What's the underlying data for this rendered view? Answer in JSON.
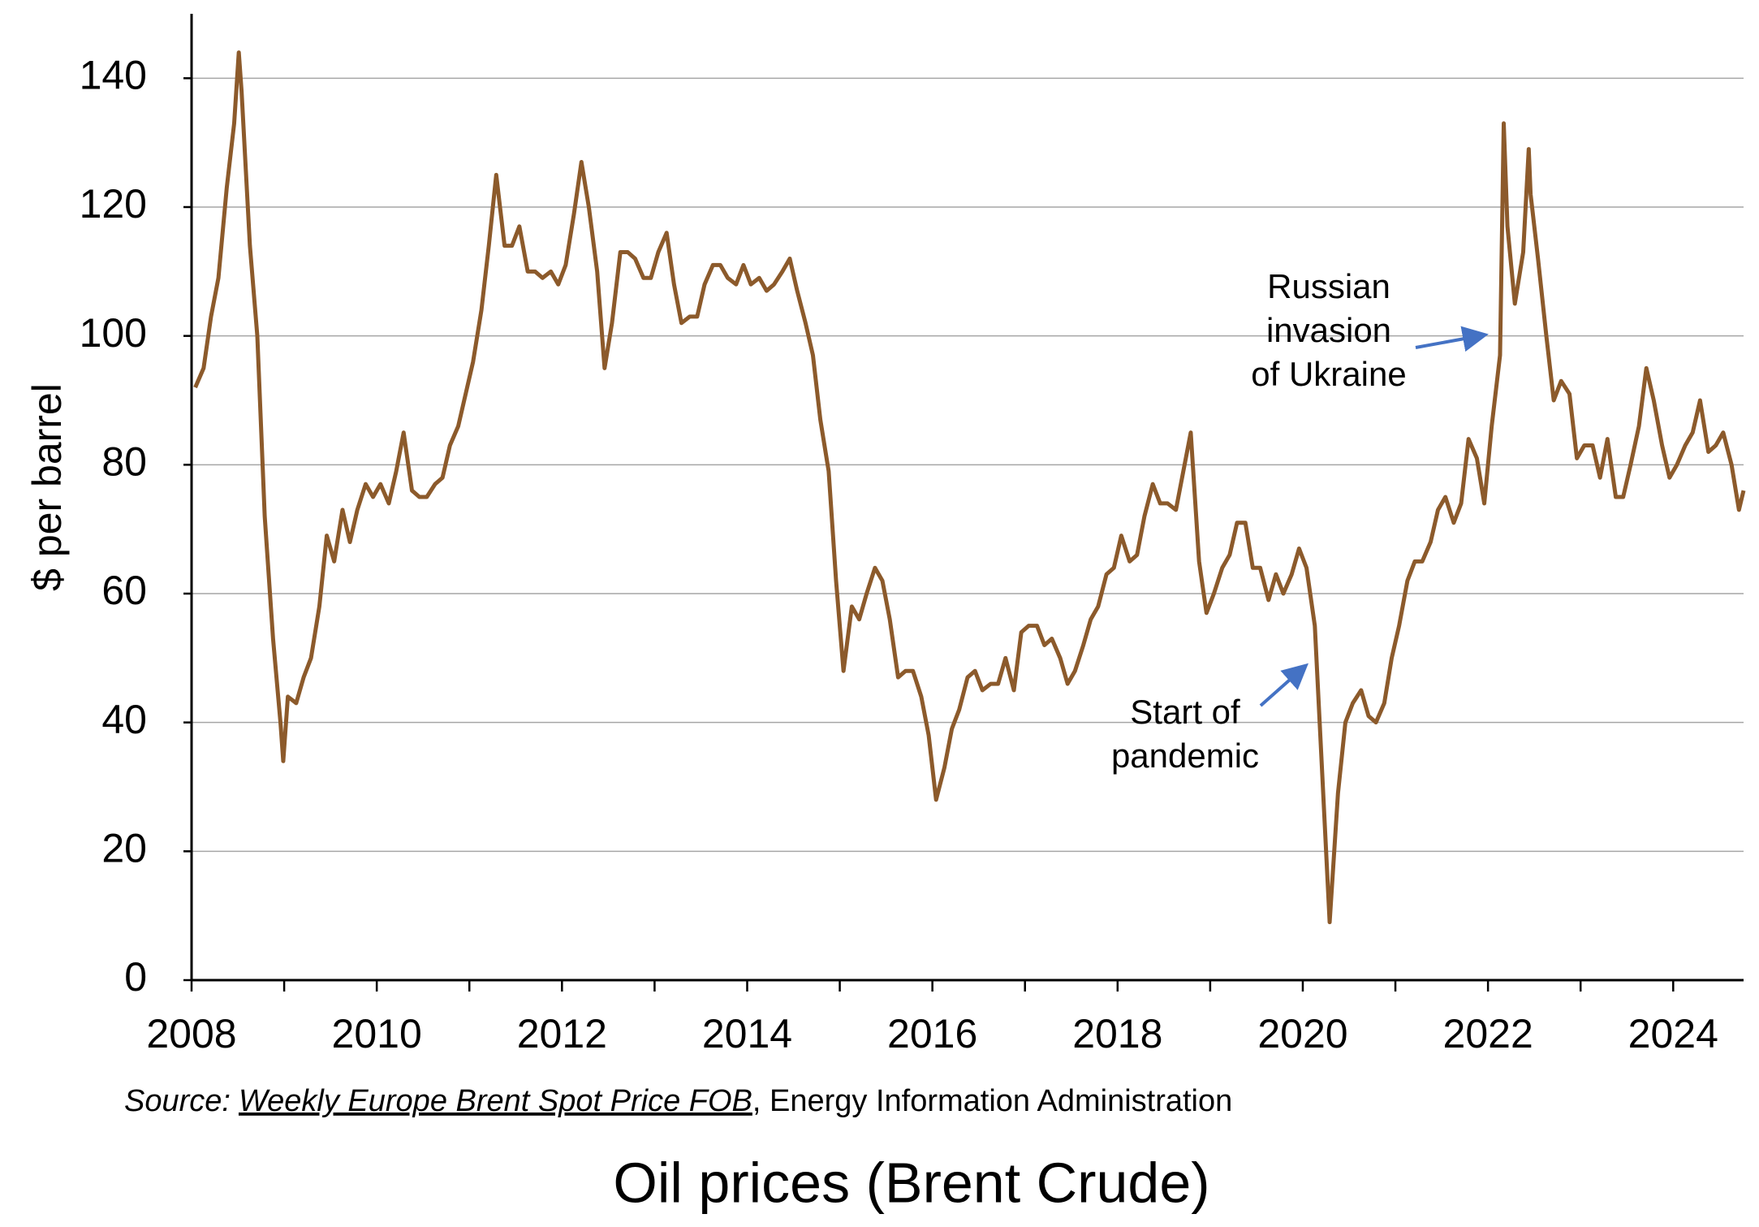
{
  "chart_data": {
    "type": "line",
    "title": "Oil prices (Brent Crude)",
    "y_label": "$ per barrel",
    "source": {
      "prefix": "Source:",
      "link": "Weekly Europe Brent Spot Price FOB",
      "suffix": ", Energy Information Administration"
    },
    "annotations": [
      {
        "lines": [
          "Russian",
          "invasion",
          "of Ukraine"
        ]
      },
      {
        "lines": [
          "Start of",
          "pandemic"
        ]
      }
    ],
    "annotation_color": "#4472c4",
    "xlim": [
      2008,
      2024.76
    ],
    "xticks": [
      2008,
      2010,
      2012,
      2014,
      2016,
      2018,
      2020,
      2022,
      2024
    ],
    "xminorticks": [
      2009,
      2011,
      2013,
      2015,
      2017,
      2019,
      2021,
      2023
    ],
    "ylim": [
      0,
      150
    ],
    "yticks": [
      0,
      20,
      40,
      60,
      80,
      100,
      120,
      140
    ],
    "grid": true,
    "x": [
      2008.04,
      2008.13,
      2008.21,
      2008.29,
      2008.38,
      2008.46,
      2008.51,
      2008.54,
      2008.63,
      2008.71,
      2008.79,
      2008.88,
      2008.96,
      2008.99,
      2009.04,
      2009.13,
      2009.21,
      2009.29,
      2009.38,
      2009.46,
      2009.54,
      2009.63,
      2009.71,
      2009.79,
      2009.88,
      2009.96,
      2010.04,
      2010.13,
      2010.21,
      2010.29,
      2010.38,
      2010.46,
      2010.54,
      2010.63,
      2010.71,
      2010.79,
      2010.88,
      2010.96,
      2011.04,
      2011.13,
      2011.21,
      2011.29,
      2011.38,
      2011.46,
      2011.54,
      2011.63,
      2011.71,
      2011.79,
      2011.88,
      2011.96,
      2012.04,
      2012.13,
      2012.21,
      2012.29,
      2012.38,
      2012.46,
      2012.54,
      2012.63,
      2012.71,
      2012.79,
      2012.88,
      2012.96,
      2013.04,
      2013.13,
      2013.21,
      2013.29,
      2013.38,
      2013.46,
      2013.54,
      2013.63,
      2013.71,
      2013.79,
      2013.88,
      2013.96,
      2014.04,
      2014.13,
      2014.21,
      2014.29,
      2014.38,
      2014.46,
      2014.54,
      2014.63,
      2014.71,
      2014.79,
      2014.88,
      2014.96,
      2015.04,
      2015.13,
      2015.21,
      2015.29,
      2015.38,
      2015.46,
      2015.54,
      2015.63,
      2015.71,
      2015.79,
      2015.88,
      2015.96,
      2016.04,
      2016.13,
      2016.21,
      2016.29,
      2016.38,
      2016.46,
      2016.54,
      2016.63,
      2016.71,
      2016.79,
      2016.88,
      2016.96,
      2017.04,
      2017.13,
      2017.21,
      2017.29,
      2017.38,
      2017.46,
      2017.54,
      2017.63,
      2017.71,
      2017.79,
      2017.88,
      2017.96,
      2018.04,
      2018.13,
      2018.21,
      2018.29,
      2018.38,
      2018.46,
      2018.54,
      2018.63,
      2018.71,
      2018.79,
      2018.88,
      2018.96,
      2019.04,
      2019.13,
      2019.21,
      2019.29,
      2019.38,
      2019.46,
      2019.54,
      2019.63,
      2019.71,
      2019.79,
      2019.88,
      2019.96,
      2020.04,
      2020.13,
      2020.21,
      2020.29,
      2020.38,
      2020.46,
      2020.54,
      2020.63,
      2020.71,
      2020.79,
      2020.88,
      2020.96,
      2021.04,
      2021.13,
      2021.21,
      2021.29,
      2021.38,
      2021.46,
      2021.54,
      2021.63,
      2021.71,
      2021.79,
      2021.88,
      2021.96,
      2022.04,
      2022.13,
      2022.17,
      2022.21,
      2022.29,
      2022.38,
      2022.44,
      2022.46,
      2022.54,
      2022.63,
      2022.71,
      2022.79,
      2022.88,
      2022.96,
      2023.04,
      2023.13,
      2023.21,
      2023.29,
      2023.38,
      2023.46,
      2023.54,
      2023.63,
      2023.71,
      2023.79,
      2023.88,
      2023.96,
      2024.04,
      2024.13,
      2024.21,
      2024.29,
      2024.38,
      2024.46,
      2024.54,
      2024.63,
      2024.71,
      2024.76
    ],
    "series": [
      {
        "name": "Brent",
        "color": "#8c5a2b",
        "values": [
          92,
          95,
          103,
          109,
          123,
          133,
          144,
          138,
          114,
          100,
          72,
          53,
          40,
          34,
          44,
          43,
          47,
          50,
          58,
          69,
          65,
          73,
          68,
          73,
          77,
          75,
          77,
          74,
          79,
          85,
          76,
          75,
          75,
          77,
          78,
          83,
          86,
          91,
          96,
          104,
          114,
          125,
          114,
          114,
          117,
          110,
          110,
          109,
          110,
          108,
          111,
          119,
          127,
          120,
          110,
          95,
          102,
          113,
          113,
          112,
          109,
          109,
          113,
          116,
          108,
          102,
          103,
          103,
          108,
          111,
          111,
          109,
          108,
          111,
          108,
          109,
          107,
          108,
          110,
          112,
          107,
          102,
          97,
          87,
          79,
          62,
          48,
          58,
          56,
          60,
          64,
          62,
          56,
          47,
          48,
          48,
          44,
          38,
          28,
          33,
          39,
          42,
          47,
          48,
          45,
          46,
          46,
          50,
          45,
          54,
          55,
          55,
          52,
          53,
          50,
          46,
          48,
          52,
          56,
          58,
          63,
          64,
          69,
          65,
          66,
          72,
          77,
          74,
          74,
          73,
          79,
          85,
          65,
          57,
          60,
          64,
          66,
          71,
          71,
          64,
          64,
          59,
          63,
          60,
          63,
          67,
          64,
          55,
          32,
          9,
          29,
          40,
          43,
          45,
          41,
          40,
          43,
          50,
          55,
          62,
          65,
          65,
          68,
          73,
          75,
          71,
          74,
          84,
          81,
          74,
          86,
          97,
          133,
          117,
          105,
          113,
          129,
          122,
          112,
          100,
          90,
          93,
          91,
          81,
          83,
          83,
          78,
          84,
          75,
          75,
          80,
          86,
          95,
          90,
          83,
          78,
          80,
          83,
          85,
          90,
          82,
          83,
          85,
          80,
          73,
          76
        ]
      }
    ]
  }
}
